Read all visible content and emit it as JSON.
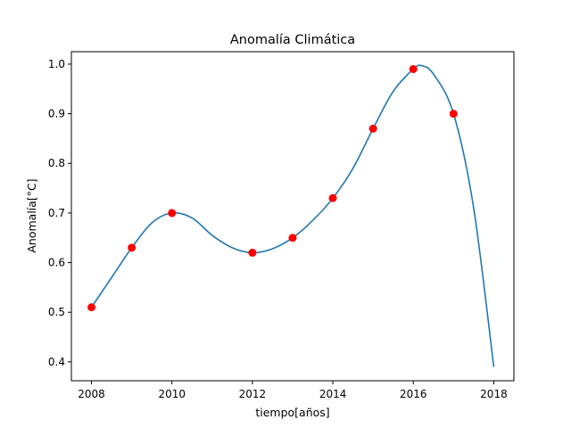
{
  "chart_data": {
    "type": "line",
    "title": "Anomalía Climática",
    "xlabel": "tiempo[años]",
    "ylabel": "Anomalía[°C]",
    "xlim": [
      2007.5,
      2018.5
    ],
    "ylim": [
      0.362,
      1.025
    ],
    "grid": false,
    "x_ticks": [
      2008,
      2010,
      2012,
      2014,
      2016,
      2018
    ],
    "y_ticks": [
      0.4,
      0.5,
      0.6,
      0.7,
      0.8,
      0.9,
      1.0
    ],
    "x_tick_labels": [
      "2008",
      "2010",
      "2012",
      "2014",
      "2016",
      "2018"
    ],
    "y_tick_labels": [
      "0.4",
      "0.5",
      "0.6",
      "0.7",
      "0.8",
      "0.9",
      "1.0"
    ],
    "series": [
      {
        "kind": "markers",
        "color": "#ff0000",
        "x": [
          2008,
          2009,
          2010,
          2012,
          2013,
          2014,
          2015,
          2016,
          2017
        ],
        "y": [
          0.51,
          0.63,
          0.7,
          0.62,
          0.65,
          0.73,
          0.87,
          0.99,
          0.9
        ]
      },
      {
        "kind": "line",
        "color": "#1f77b4",
        "x": [
          2008,
          2008.5,
          2009,
          2009.5,
          2010,
          2010.5,
          2011,
          2011.5,
          2012,
          2012.5,
          2013,
          2013.5,
          2014,
          2014.5,
          2015,
          2015.5,
          2016,
          2016.2,
          2016.5,
          2017,
          2017.5,
          2018
        ],
        "y": [
          0.51,
          0.57,
          0.63,
          0.68,
          0.7,
          0.69,
          0.655,
          0.63,
          0.62,
          0.628,
          0.65,
          0.685,
          0.73,
          0.79,
          0.87,
          0.945,
          0.99,
          0.997,
          0.98,
          0.9,
          0.71,
          0.39
        ]
      }
    ]
  }
}
